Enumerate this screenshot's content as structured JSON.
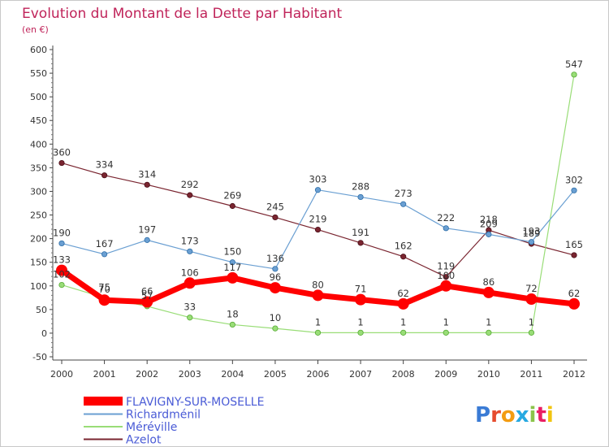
{
  "chart_data": {
    "type": "line",
    "title": "Evolution du Montant de la Dette par Habitant",
    "subtitle": "(en €)",
    "x": [
      "2000",
      "2001",
      "2002",
      "2003",
      "2004",
      "2005",
      "2006",
      "2007",
      "2008",
      "2009",
      "2010",
      "2011",
      "2012"
    ],
    "yticks": [
      600,
      550,
      500,
      450,
      400,
      350,
      300,
      250,
      200,
      150,
      100,
      50,
      0,
      -50
    ],
    "ylim": [
      -50,
      600
    ],
    "grid": false,
    "legend_position": "bottom-left",
    "series": [
      {
        "name": "FLAVIGNY-SUR-MOSELLE",
        "color": "#ff0000",
        "values": [
          133,
          70,
          66,
          106,
          117,
          96,
          80,
          71,
          62,
          100,
          86,
          72,
          62
        ]
      },
      {
        "name": "Richardménil",
        "color": "#6a9fd2",
        "values": [
          190,
          167,
          197,
          173,
          150,
          136,
          303,
          288,
          273,
          222,
          209,
          193,
          302
        ]
      },
      {
        "name": "Méréville",
        "color": "#99dd77",
        "values": [
          102,
          75,
          57,
          33,
          18,
          10,
          1,
          1,
          1,
          1,
          1,
          1,
          547
        ]
      },
      {
        "name": "Azelot",
        "color": "#7a2530",
        "values": [
          360,
          334,
          314,
          292,
          269,
          245,
          219,
          191,
          162,
          119,
          218,
          189,
          165
        ]
      }
    ]
  },
  "logo": {
    "text": "Proxiti"
  }
}
